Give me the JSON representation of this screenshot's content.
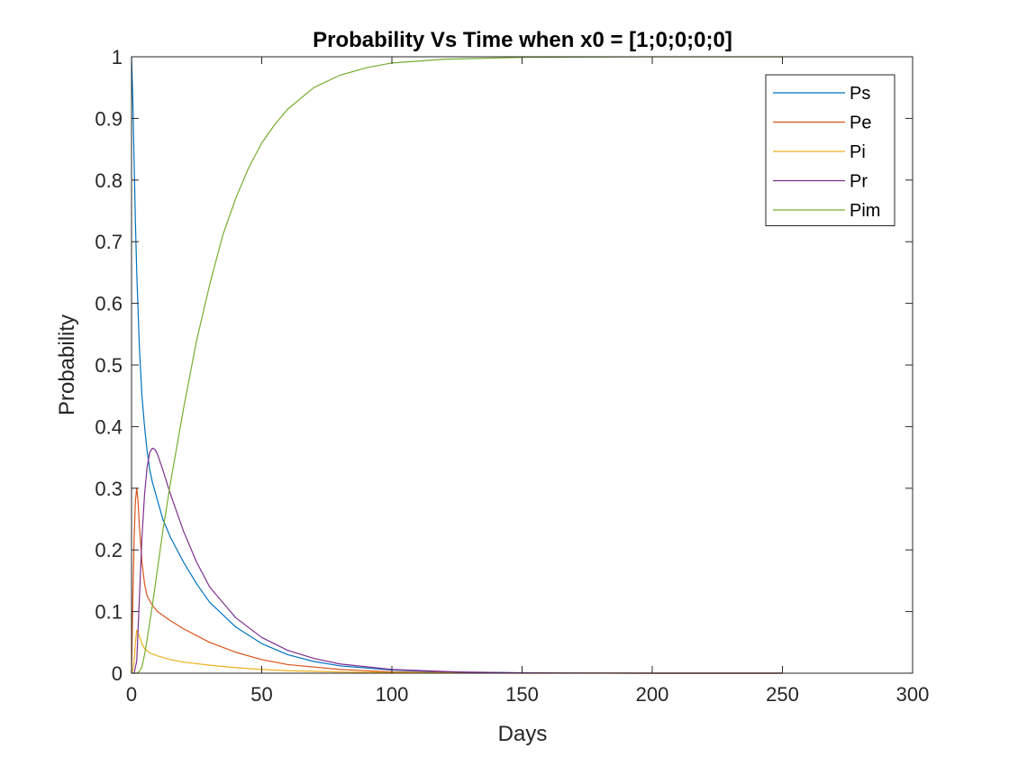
{
  "chart_data": {
    "type": "line",
    "title": "Probability Vs Time when x0 = [1;0;0;0;0]",
    "xlabel": "Days",
    "ylabel": "Probability",
    "xlim": [
      0,
      300
    ],
    "ylim": [
      0,
      1
    ],
    "xticks": [
      0,
      50,
      100,
      150,
      200,
      250,
      300
    ],
    "xtick_labels": [
      "0",
      "50",
      "100",
      "150",
      "200",
      "250",
      "300"
    ],
    "yticks": [
      0,
      0.1,
      0.2,
      0.3,
      0.4,
      0.5,
      0.6,
      0.7,
      0.8,
      0.9,
      1
    ],
    "ytick_labels": [
      "0",
      "0.1",
      "0.2",
      "0.3",
      "0.4",
      "0.5",
      "0.6",
      "0.7",
      "0.8",
      "0.9",
      "1"
    ],
    "grid": false,
    "legend_position": "top-right",
    "series": [
      {
        "name": "Ps",
        "color": "#0072BD",
        "x": [
          0,
          0.5,
          1,
          1.5,
          2,
          3,
          4,
          5,
          6,
          7,
          8,
          10,
          12,
          15,
          20,
          25,
          30,
          40,
          50,
          60,
          70,
          80,
          100,
          125,
          150,
          200,
          250
        ],
        "y": [
          1.0,
          0.93,
          0.83,
          0.73,
          0.65,
          0.53,
          0.45,
          0.4,
          0.36,
          0.33,
          0.31,
          0.28,
          0.25,
          0.22,
          0.18,
          0.145,
          0.115,
          0.075,
          0.048,
          0.03,
          0.019,
          0.012,
          0.005,
          0.0015,
          0.0005,
          0.0,
          0.0
        ]
      },
      {
        "name": "Pe",
        "color": "#D95319",
        "x": [
          0,
          0.5,
          1,
          1.5,
          2,
          2.5,
          3,
          4,
          5,
          6,
          8,
          10,
          15,
          20,
          30,
          40,
          50,
          60,
          80,
          100,
          125,
          150,
          200,
          250
        ],
        "y": [
          0.0,
          0.12,
          0.22,
          0.28,
          0.3,
          0.28,
          0.24,
          0.18,
          0.145,
          0.125,
          0.11,
          0.1,
          0.085,
          0.072,
          0.05,
          0.034,
          0.022,
          0.014,
          0.006,
          0.002,
          0.0007,
          0.0002,
          0.0,
          0.0
        ]
      },
      {
        "name": "Pi",
        "color": "#EDB120",
        "x": [
          0,
          0.5,
          1,
          1.5,
          2,
          3,
          4,
          5,
          7,
          10,
          15,
          20,
          30,
          40,
          50,
          60,
          80,
          100,
          150,
          200,
          250
        ],
        "y": [
          0.0,
          0.005,
          0.02,
          0.05,
          0.07,
          0.06,
          0.048,
          0.04,
          0.033,
          0.028,
          0.022,
          0.018,
          0.013,
          0.009,
          0.006,
          0.004,
          0.002,
          0.001,
          0.0,
          0.0,
          0.0
        ]
      },
      {
        "name": "Pr",
        "color": "#7E2F8E",
        "x": [
          0,
          1,
          2,
          3,
          4,
          5,
          6,
          7,
          8,
          9,
          10,
          12,
          15,
          20,
          25,
          30,
          40,
          50,
          60,
          70,
          80,
          100,
          125,
          150,
          200,
          250
        ],
        "y": [
          0.0,
          0.0,
          0.02,
          0.12,
          0.22,
          0.29,
          0.335,
          0.358,
          0.365,
          0.363,
          0.355,
          0.33,
          0.29,
          0.23,
          0.18,
          0.14,
          0.09,
          0.058,
          0.037,
          0.024,
          0.015,
          0.006,
          0.002,
          0.0005,
          0.0,
          0.0
        ]
      },
      {
        "name": "Pim",
        "color": "#77AC30",
        "x": [
          0,
          2,
          3,
          4,
          5,
          6,
          8,
          10,
          12,
          15,
          20,
          25,
          30,
          35,
          40,
          45,
          50,
          55,
          60,
          70,
          80,
          90,
          100,
          120,
          150,
          200,
          250
        ],
        "y": [
          0.0,
          0.0,
          0.003,
          0.01,
          0.03,
          0.055,
          0.11,
          0.17,
          0.23,
          0.31,
          0.43,
          0.54,
          0.63,
          0.71,
          0.77,
          0.82,
          0.86,
          0.89,
          0.915,
          0.95,
          0.97,
          0.982,
          0.99,
          0.996,
          0.999,
          1.0,
          1.0
        ]
      }
    ]
  }
}
